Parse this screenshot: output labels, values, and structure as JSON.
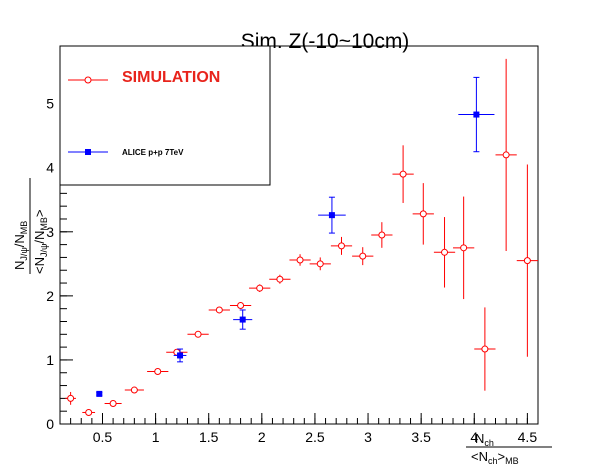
{
  "chart_data": {
    "type": "scatter",
    "title": "Sim. Z(-10~10cm)",
    "xlim": [
      0.1,
      4.6
    ],
    "ylim": [
      0,
      5.9
    ],
    "x_ticks": [
      {
        "v": 0.5,
        "label": "0.5"
      },
      {
        "v": 1,
        "label": "1"
      },
      {
        "v": 1.5,
        "label": "1.5"
      },
      {
        "v": 2,
        "label": "2"
      },
      {
        "v": 2.5,
        "label": "2.5"
      },
      {
        "v": 3,
        "label": "3"
      },
      {
        "v": 3.5,
        "label": "3.5"
      },
      {
        "v": 4,
        "label": "4"
      },
      {
        "v": 4.5,
        "label": "4.5"
      }
    ],
    "y_ticks": [
      {
        "v": 0,
        "label": "0"
      },
      {
        "v": 1,
        "label": "1"
      },
      {
        "v": 2,
        "label": "2"
      },
      {
        "v": 3,
        "label": "3"
      },
      {
        "v": 4,
        "label": "4"
      },
      {
        "v": 5,
        "label": "5"
      }
    ],
    "xlabel": {
      "num_main": "N",
      "num_sub": "ch",
      "den_open": "<N",
      "den_sub1": "ch",
      "den_close": ">",
      "den_sub2": "MB"
    },
    "ylabel": {
      "num_a": "N",
      "num_a_sub": "J/ψ",
      "num_slash": "/N",
      "num_b_sub": "MB",
      "den_open": "<N",
      "den_a_sub": "J/ψ",
      "den_slash": "/N",
      "den_b_sub": "MB",
      "den_close": ">"
    },
    "legend": {
      "placement": "top-left",
      "items": [
        {
          "label": "SIMULATION",
          "color": "#e8241c"
        },
        {
          "label": "ALICE p+p 7TeV",
          "color": "#0000ff"
        }
      ]
    },
    "series": [
      {
        "name": "SIMULATION",
        "color": "#ff0000",
        "marker": "open-circle",
        "points": [
          {
            "x": 0.2,
            "y": 0.4,
            "xerr": 0.05,
            "yerr": 0.1
          },
          {
            "x": 0.37,
            "y": 0.18,
            "xerr": 0.06,
            "yerr": 0.03
          },
          {
            "x": 0.6,
            "y": 0.32,
            "xerr": 0.08,
            "yerr": 0.03
          },
          {
            "x": 0.8,
            "y": 0.53,
            "xerr": 0.09,
            "yerr": 0.03
          },
          {
            "x": 1.02,
            "y": 0.82,
            "xerr": 0.1,
            "yerr": 0.03
          },
          {
            "x": 1.2,
            "y": 1.12,
            "xerr": 0.1,
            "yerr": 0.04
          },
          {
            "x": 1.4,
            "y": 1.4,
            "xerr": 0.1,
            "yerr": 0.04
          },
          {
            "x": 1.6,
            "y": 1.78,
            "xerr": 0.1,
            "yerr": 0.04
          },
          {
            "x": 1.8,
            "y": 1.85,
            "xerr": 0.1,
            "yerr": 0.05
          },
          {
            "x": 1.98,
            "y": 2.12,
            "xerr": 0.1,
            "yerr": 0.06
          },
          {
            "x": 2.17,
            "y": 2.26,
            "xerr": 0.1,
            "yerr": 0.07
          },
          {
            "x": 2.36,
            "y": 2.56,
            "xerr": 0.1,
            "yerr": 0.09
          },
          {
            "x": 2.55,
            "y": 2.5,
            "xerr": 0.1,
            "yerr": 0.1
          },
          {
            "x": 2.75,
            "y": 2.78,
            "xerr": 0.1,
            "yerr": 0.14
          },
          {
            "x": 2.95,
            "y": 2.62,
            "xerr": 0.1,
            "yerr": 0.14
          },
          {
            "x": 3.13,
            "y": 2.95,
            "xerr": 0.1,
            "yerr": 0.2
          },
          {
            "x": 3.33,
            "y": 3.9,
            "xerr": 0.1,
            "yerr": 0.45
          },
          {
            "x": 3.52,
            "y": 3.28,
            "xerr": 0.1,
            "yerr": 0.48
          },
          {
            "x": 3.72,
            "y": 2.68,
            "xerr": 0.1,
            "yerr": 0.55
          },
          {
            "x": 3.9,
            "y": 2.75,
            "xerr": 0.1,
            "yerr": 0.8
          },
          {
            "x": 4.1,
            "y": 1.17,
            "xerr": 0.1,
            "yerr": 0.65
          },
          {
            "x": 4.3,
            "y": 4.2,
            "xerr": 0.1,
            "yerr": 1.5
          },
          {
            "x": 4.5,
            "y": 2.55,
            "xerr": 0.1,
            "yerr": 1.5
          }
        ]
      },
      {
        "name": "ALICE p+p 7TeV",
        "color": "#0000ff",
        "marker": "filled-square",
        "points": [
          {
            "x": 0.47,
            "y": 0.47,
            "xerr": 0.02,
            "yerr": 0.02
          },
          {
            "x": 1.23,
            "y": 1.07,
            "xerr": 0.06,
            "yerr": 0.1
          },
          {
            "x": 1.82,
            "y": 1.63,
            "xerr": 0.09,
            "yerr": 0.15
          },
          {
            "x": 2.66,
            "y": 3.26,
            "xerr": 0.13,
            "yerr": 0.28
          },
          {
            "x": 4.02,
            "y": 4.83,
            "xerr": 0.17,
            "yerr": 0.58
          }
        ]
      }
    ]
  }
}
